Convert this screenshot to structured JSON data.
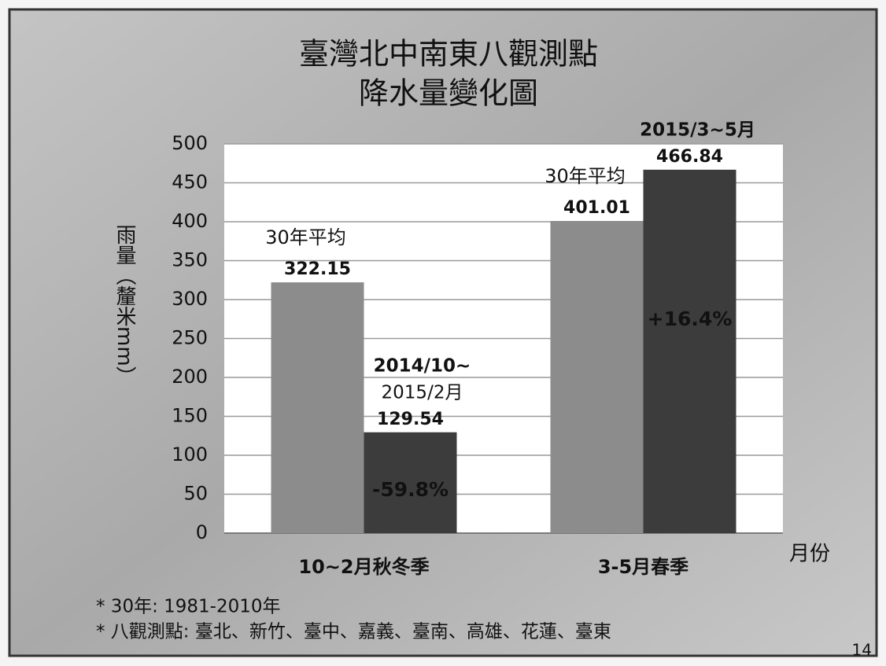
{
  "chart_data": {
    "type": "bar",
    "title": [
      "臺灣北中南東八觀測點",
      "降水量變化圖"
    ],
    "ylabel": "雨量︵釐米mm︶",
    "xlabel": "月份",
    "categories": [
      "10~2月秋冬季",
      "3-5月春季"
    ],
    "series": [
      {
        "name": "30年平均",
        "color": "#8c8c8c",
        "values": [
          322.15,
          401.01
        ]
      },
      {
        "name": null,
        "color": "#3c3c3c",
        "values": [
          129.54,
          466.84
        ]
      }
    ],
    "period_labels": [
      [
        "2014/10~",
        "2015/2月"
      ],
      [
        "2015/3~5月"
      ]
    ],
    "changes": [
      -59.8,
      16.4
    ],
    "change_labels": [
      "-59.8%",
      "+16.4%"
    ],
    "ylim": [
      0,
      500
    ],
    "yticks": [
      0,
      50,
      100,
      150,
      200,
      250,
      300,
      350,
      400,
      450,
      500
    ],
    "grid": true,
    "footnotes": [
      "* 30年: 1981-2010年",
      "* 八觀測點: 臺北、新竹、臺中、嘉義、臺南、高雄、花蓮、臺東"
    ],
    "page_number": "14"
  }
}
